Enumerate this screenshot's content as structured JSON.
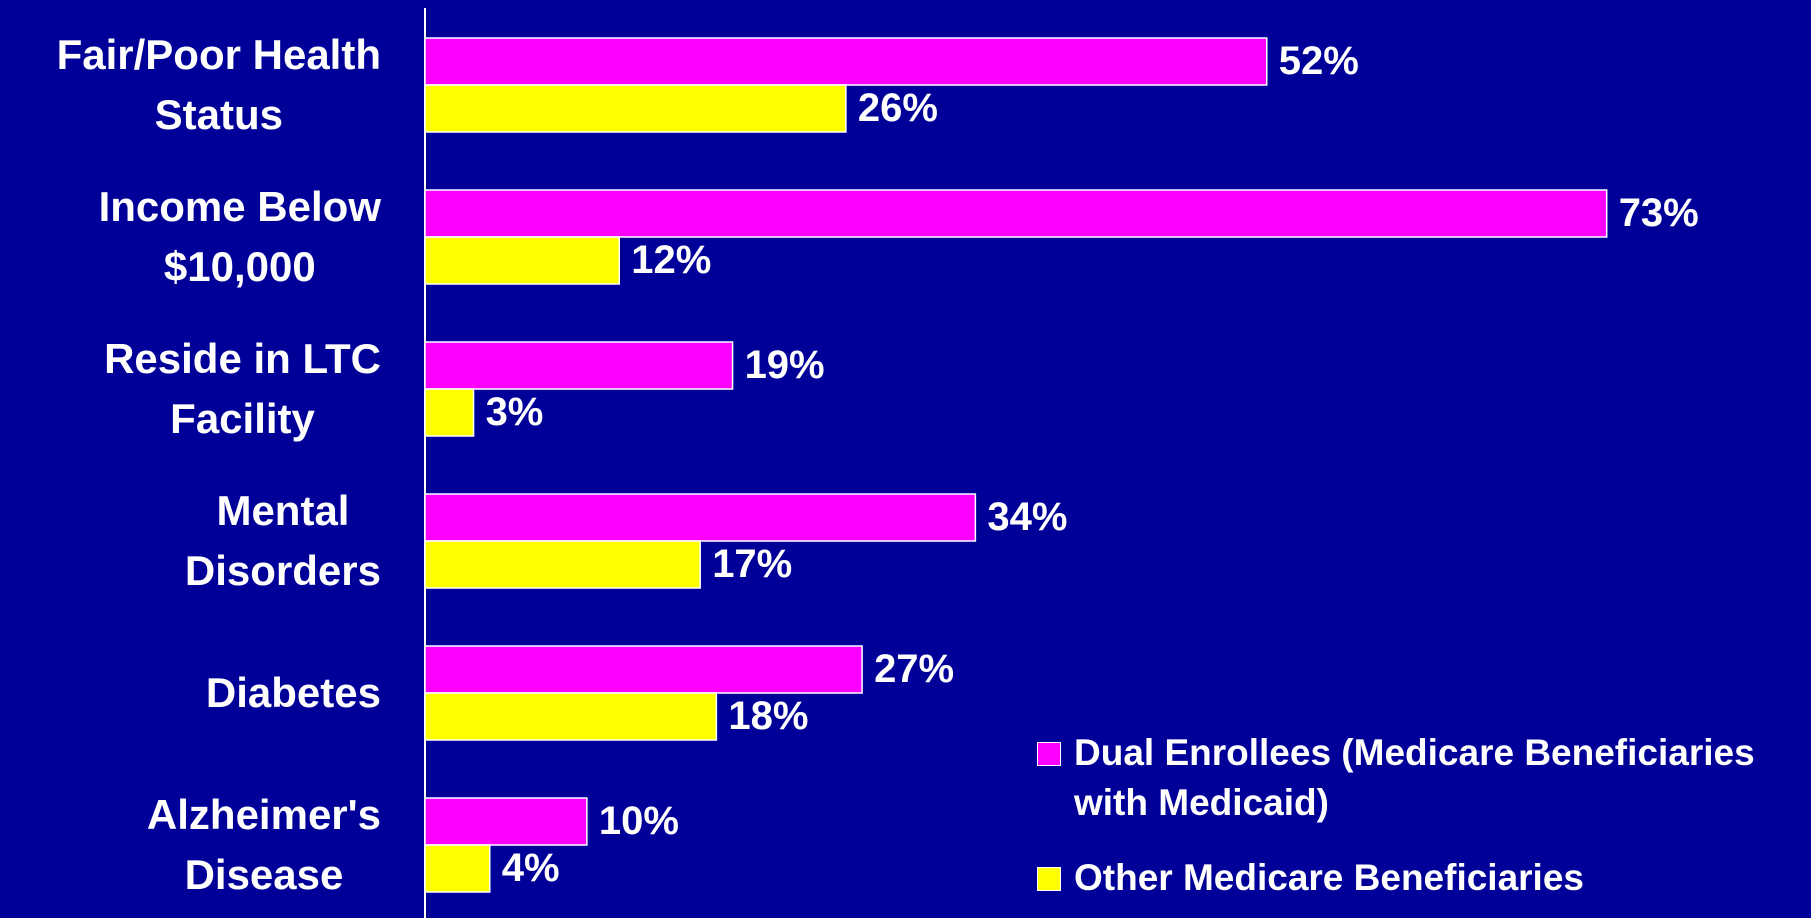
{
  "chart_data": {
    "type": "bar",
    "orientation": "horizontal",
    "categories": [
      "Fair/Poor Health\nStatus",
      "Income Below\n$10,000",
      "Reside in LTC\nFacility",
      "Mental\nDisorders",
      "Diabetes",
      "Alzheimer's\nDisease"
    ],
    "series": [
      {
        "name": "Dual Enrollees (Medicare Beneficiaries with Medicaid)",
        "color": "#ff00ff",
        "values": [
          52,
          73,
          19,
          34,
          27,
          10
        ],
        "value_labels": [
          "52%",
          "73%",
          "19%",
          "34%",
          "27%",
          "10%"
        ]
      },
      {
        "name": "Other Medicare Beneficiaries",
        "color": "#ffff00",
        "values": [
          26,
          12,
          3,
          17,
          18,
          4
        ],
        "value_labels": [
          "26%",
          "12%",
          "3%",
          "17%",
          "18%",
          "4%"
        ]
      }
    ],
    "xlim": [
      0,
      80
    ],
    "legend": "lower right"
  }
}
